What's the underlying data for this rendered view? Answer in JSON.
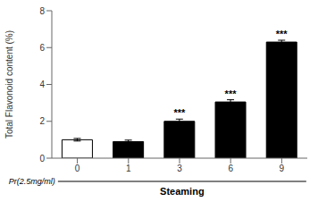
{
  "chart_data": {
    "type": "bar",
    "categories": [
      "0",
      "1",
      "3",
      "6",
      "9"
    ],
    "values": [
      1.0,
      0.9,
      2.0,
      3.05,
      6.3
    ],
    "errors": [
      0.07,
      0.08,
      0.12,
      0.12,
      0.1
    ],
    "colors": [
      "white",
      "black",
      "black",
      "black",
      "black"
    ],
    "ylabel": "Total Flavonoid content (%)",
    "xlabel": "Steaming",
    "annotations": [
      {
        "text": "Pr(2.5mg/ml)"
      },
      {
        "category": "3",
        "text": "***"
      },
      {
        "category": "6",
        "text": "***"
      },
      {
        "category": "9",
        "text": "***"
      }
    ],
    "ylim": [
      0,
      8
    ],
    "yticks": [
      0,
      2,
      4,
      6,
      8
    ]
  }
}
